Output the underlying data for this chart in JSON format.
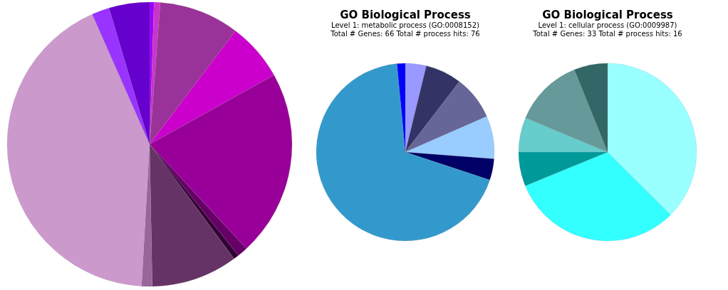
{
  "chart_data": [
    {
      "type": "pie",
      "categories": [
        null,
        null,
        null,
        null,
        null,
        null,
        null,
        null,
        null,
        null,
        null,
        null
      ],
      "values": [
        0.5,
        0.7,
        9.1,
        6.6,
        21.2,
        1.2,
        0.6,
        9.8,
        1.2,
        42.5,
        2.0,
        4.6
      ],
      "colors": [
        "#9900ff",
        "#cc33cc",
        "#993399",
        "#cc00cc",
        "#990099",
        "#660066",
        "#330033",
        "#663366",
        "#996699",
        "#cc99cc",
        "#9933ff",
        "#6600cc"
      ]
    },
    {
      "type": "pie",
      "title": "GO Biological Process",
      "subtitle": "Level 1: metabolic process (GO:0008152)",
      "annotations": [
        "Total # Genes: 66    Total # process hits: 76"
      ],
      "categories": [
        null,
        null,
        null,
        null,
        null,
        null,
        null
      ],
      "values": [
        3.8,
        6.6,
        8.0,
        7.8,
        3.9,
        68.4,
        1.5
      ],
      "colors": [
        "#9999ff",
        "#333366",
        "#666699",
        "#99ccff",
        "#000066",
        "#3399cc",
        "#0000ff"
      ]
    },
    {
      "type": "pie",
      "title": "GO Biological Process",
      "subtitle": "Level 1: cellular process (GO:0009987)",
      "annotations": [
        "Total # Genes: 33    Total # process hits: 16"
      ],
      "categories": [
        null,
        null,
        null,
        null,
        null,
        null
      ],
      "values": [
        37.5,
        31.3,
        6.2,
        6.3,
        12.6,
        6.1
      ],
      "colors": [
        "#99ffff",
        "#33ffff",
        "#009999",
        "#66cccc",
        "#669999",
        "#336666"
      ]
    }
  ]
}
